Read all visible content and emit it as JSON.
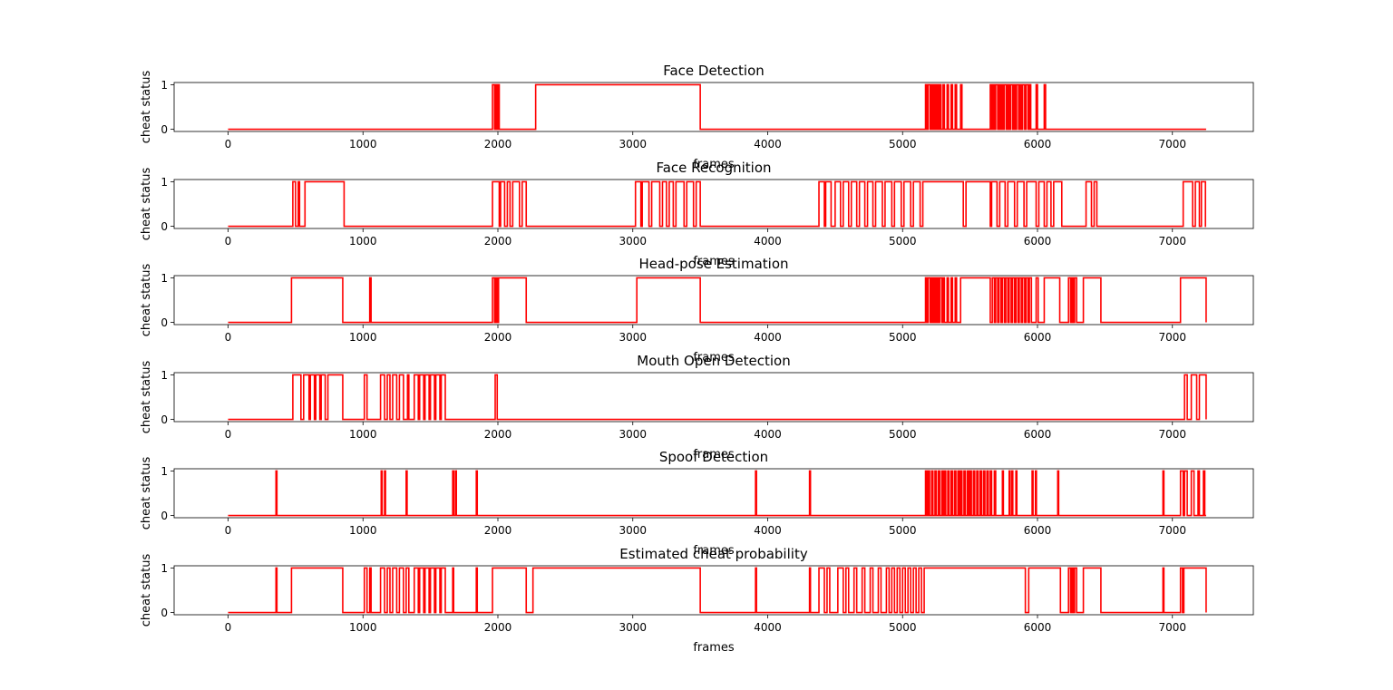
{
  "figure": {
    "trace_color": "#ff0000"
  },
  "chart_data": [
    {
      "type": "line",
      "title": "Face Detection",
      "xlabel": "frames",
      "ylabel": "cheat status",
      "xlim": [
        -400,
        7600
      ],
      "ylim": [
        -0.05,
        1.05
      ],
      "xticks": [
        0,
        1000,
        2000,
        3000,
        4000,
        5000,
        6000,
        7000
      ],
      "yticks": [
        0,
        1
      ],
      "active_intervals": [
        [
          1960,
          1975
        ],
        [
          1985,
          1995
        ],
        [
          2000,
          2010
        ],
        [
          2280,
          3500
        ],
        [
          5170,
          5180
        ],
        [
          5190,
          5205
        ],
        [
          5215,
          5225
        ],
        [
          5235,
          5245
        ],
        [
          5255,
          5265
        ],
        [
          5275,
          5285
        ],
        [
          5300,
          5310
        ],
        [
          5330,
          5340
        ],
        [
          5360,
          5370
        ],
        [
          5390,
          5400
        ],
        [
          5430,
          5440
        ],
        [
          5650,
          5660
        ],
        [
          5670,
          5680
        ],
        [
          5690,
          5705
        ],
        [
          5715,
          5725
        ],
        [
          5735,
          5745
        ],
        [
          5755,
          5770
        ],
        [
          5780,
          5790
        ],
        [
          5800,
          5815
        ],
        [
          5825,
          5835
        ],
        [
          5845,
          5860
        ],
        [
          5870,
          5880
        ],
        [
          5890,
          5905
        ],
        [
          5915,
          5930
        ],
        [
          5940,
          5950
        ],
        [
          5990,
          6000
        ],
        [
          6050,
          6060
        ]
      ],
      "x_end": 7250
    },
    {
      "type": "line",
      "title": "Face Recognition",
      "xlabel": "frames",
      "ylabel": "cheat status",
      "xlim": [
        -400,
        7600
      ],
      "ylim": [
        -0.05,
        1.05
      ],
      "xticks": [
        0,
        1000,
        2000,
        3000,
        4000,
        5000,
        6000,
        7000
      ],
      "yticks": [
        0,
        1
      ],
      "active_intervals": [
        [
          480,
          500
        ],
        [
          520,
          530
        ],
        [
          570,
          860
        ],
        [
          1960,
          2010
        ],
        [
          2020,
          2050
        ],
        [
          2070,
          2090
        ],
        [
          2110,
          2160
        ],
        [
          2180,
          2210
        ],
        [
          3020,
          3060
        ],
        [
          3070,
          3120
        ],
        [
          3140,
          3200
        ],
        [
          3220,
          3250
        ],
        [
          3270,
          3300
        ],
        [
          3320,
          3380
        ],
        [
          3400,
          3450
        ],
        [
          3470,
          3500
        ],
        [
          4380,
          4420
        ],
        [
          4430,
          4470
        ],
        [
          4500,
          4540
        ],
        [
          4560,
          4600
        ],
        [
          4620,
          4660
        ],
        [
          4680,
          4720
        ],
        [
          4740,
          4780
        ],
        [
          4800,
          4850
        ],
        [
          4870,
          4920
        ],
        [
          4940,
          4990
        ],
        [
          5010,
          5060
        ],
        [
          5080,
          5130
        ],
        [
          5150,
          5450
        ],
        [
          5470,
          5650
        ],
        [
          5660,
          5700
        ],
        [
          5720,
          5760
        ],
        [
          5780,
          5830
        ],
        [
          5850,
          5900
        ],
        [
          5920,
          5990
        ],
        [
          6010,
          6050
        ],
        [
          6070,
          6100
        ],
        [
          6120,
          6180
        ],
        [
          6360,
          6400
        ],
        [
          6420,
          6440
        ],
        [
          7080,
          7150
        ],
        [
          7170,
          7200
        ],
        [
          7215,
          7245
        ]
      ],
      "x_end": 7250
    },
    {
      "type": "line",
      "title": "Head-pose Estimation",
      "xlabel": "frames",
      "ylabel": "cheat status",
      "xlim": [
        -400,
        7600
      ],
      "ylim": [
        -0.05,
        1.05
      ],
      "xticks": [
        0,
        1000,
        2000,
        3000,
        4000,
        5000,
        6000,
        7000
      ],
      "yticks": [
        0,
        1
      ],
      "active_intervals": [
        [
          470,
          850
        ],
        [
          1050,
          1060
        ],
        [
          1960,
          1975
        ],
        [
          1985,
          1995
        ],
        [
          2005,
          2210
        ],
        [
          3030,
          3500
        ],
        [
          5170,
          5180
        ],
        [
          5190,
          5205
        ],
        [
          5215,
          5225
        ],
        [
          5235,
          5245
        ],
        [
          5255,
          5265
        ],
        [
          5275,
          5290
        ],
        [
          5300,
          5310
        ],
        [
          5330,
          5340
        ],
        [
          5360,
          5370
        ],
        [
          5390,
          5400
        ],
        [
          5430,
          5650
        ],
        [
          5665,
          5680
        ],
        [
          5690,
          5705
        ],
        [
          5715,
          5730
        ],
        [
          5740,
          5755
        ],
        [
          5765,
          5780
        ],
        [
          5790,
          5805
        ],
        [
          5815,
          5830
        ],
        [
          5840,
          5855
        ],
        [
          5865,
          5880
        ],
        [
          5890,
          5905
        ],
        [
          5915,
          5930
        ],
        [
          5940,
          5955
        ],
        [
          5990,
          6005
        ],
        [
          6050,
          6165
        ],
        [
          6230,
          6245
        ],
        [
          6255,
          6265
        ],
        [
          6275,
          6290
        ],
        [
          6340,
          6470
        ],
        [
          7060,
          7250
        ]
      ],
      "x_end": 7250
    },
    {
      "type": "line",
      "title": "Mouth Open Detection",
      "xlabel": "frames",
      "ylabel": "cheat status",
      "xlim": [
        -400,
        7600
      ],
      "ylim": [
        -0.05,
        1.05
      ],
      "xticks": [
        0,
        1000,
        2000,
        3000,
        4000,
        5000,
        6000,
        7000
      ],
      "yticks": [
        0,
        1
      ],
      "active_intervals": [
        [
          480,
          540
        ],
        [
          560,
          600
        ],
        [
          610,
          640
        ],
        [
          650,
          680
        ],
        [
          690,
          720
        ],
        [
          740,
          850
        ],
        [
          1010,
          1030
        ],
        [
          1130,
          1160
        ],
        [
          1180,
          1200
        ],
        [
          1220,
          1250
        ],
        [
          1270,
          1300
        ],
        [
          1330,
          1340
        ],
        [
          1380,
          1410
        ],
        [
          1420,
          1450
        ],
        [
          1460,
          1490
        ],
        [
          1500,
          1530
        ],
        [
          1540,
          1570
        ],
        [
          1580,
          1610
        ],
        [
          1980,
          1995
        ],
        [
          7090,
          7110
        ],
        [
          7140,
          7180
        ],
        [
          7200,
          7250
        ]
      ],
      "x_end": 7250
    },
    {
      "type": "line",
      "title": "Spoof Detection",
      "xlabel": "frames",
      "ylabel": "cheat status",
      "xlim": [
        -400,
        7600
      ],
      "ylim": [
        -0.05,
        1.05
      ],
      "xticks": [
        0,
        1000,
        2000,
        3000,
        4000,
        5000,
        6000,
        7000
      ],
      "yticks": [
        0,
        1
      ],
      "active_intervals": [
        [
          355,
          362
        ],
        [
          1135,
          1142
        ],
        [
          1160,
          1167
        ],
        [
          1320,
          1327
        ],
        [
          1665,
          1672
        ],
        [
          1685,
          1692
        ],
        [
          1840,
          1847
        ],
        [
          3910,
          3917
        ],
        [
          4310,
          4317
        ],
        [
          5170,
          5180
        ],
        [
          5190,
          5200
        ],
        [
          5215,
          5225
        ],
        [
          5240,
          5250
        ],
        [
          5265,
          5275
        ],
        [
          5290,
          5300
        ],
        [
          5310,
          5320
        ],
        [
          5335,
          5345
        ],
        [
          5360,
          5370
        ],
        [
          5385,
          5395
        ],
        [
          5410,
          5420
        ],
        [
          5430,
          5440
        ],
        [
          5455,
          5465
        ],
        [
          5480,
          5490
        ],
        [
          5500,
          5510
        ],
        [
          5525,
          5535
        ],
        [
          5550,
          5560
        ],
        [
          5575,
          5585
        ],
        [
          5600,
          5610
        ],
        [
          5625,
          5635
        ],
        [
          5650,
          5660
        ],
        [
          5680,
          5690
        ],
        [
          5740,
          5747
        ],
        [
          5790,
          5797
        ],
        [
          5810,
          5817
        ],
        [
          5840,
          5847
        ],
        [
          5960,
          5967
        ],
        [
          5985,
          5992
        ],
        [
          6150,
          6157
        ],
        [
          6930,
          6937
        ],
        [
          7060,
          7080
        ],
        [
          7090,
          7110
        ],
        [
          7140,
          7160
        ],
        [
          7190,
          7200
        ],
        [
          7230,
          7240
        ]
      ],
      "x_end": 7250
    },
    {
      "type": "line",
      "title": "Estimated cheat probability",
      "xlabel": "frames",
      "ylabel": "cheat status",
      "xlim": [
        -400,
        7600
      ],
      "ylim": [
        -0.05,
        1.05
      ],
      "xticks": [
        0,
        1000,
        2000,
        3000,
        4000,
        5000,
        6000,
        7000
      ],
      "yticks": [
        0,
        1
      ],
      "active_intervals": [
        [
          355,
          362
        ],
        [
          470,
          850
        ],
        [
          1010,
          1030
        ],
        [
          1050,
          1060
        ],
        [
          1130,
          1160
        ],
        [
          1180,
          1200
        ],
        [
          1220,
          1250
        ],
        [
          1270,
          1300
        ],
        [
          1320,
          1340
        ],
        [
          1380,
          1410
        ],
        [
          1420,
          1450
        ],
        [
          1460,
          1490
        ],
        [
          1500,
          1530
        ],
        [
          1540,
          1570
        ],
        [
          1580,
          1610
        ],
        [
          1665,
          1672
        ],
        [
          1840,
          1847
        ],
        [
          1960,
          2210
        ],
        [
          2260,
          3500
        ],
        [
          3910,
          3917
        ],
        [
          4310,
          4317
        ],
        [
          4380,
          4420
        ],
        [
          4440,
          4460
        ],
        [
          4520,
          4560
        ],
        [
          4580,
          4600
        ],
        [
          4640,
          4660
        ],
        [
          4700,
          4720
        ],
        [
          4760,
          4780
        ],
        [
          4820,
          4840
        ],
        [
          4880,
          4900
        ],
        [
          4920,
          4940
        ],
        [
          4960,
          4980
        ],
        [
          5000,
          5020
        ],
        [
          5040,
          5060
        ],
        [
          5080,
          5100
        ],
        [
          5120,
          5140
        ],
        [
          5160,
          5910
        ],
        [
          5935,
          6170
        ],
        [
          6230,
          6245
        ],
        [
          6255,
          6265
        ],
        [
          6275,
          6290
        ],
        [
          6340,
          6470
        ],
        [
          6930,
          6937
        ],
        [
          7060,
          7075
        ],
        [
          7085,
          7250
        ]
      ],
      "x_end": 7250
    }
  ]
}
